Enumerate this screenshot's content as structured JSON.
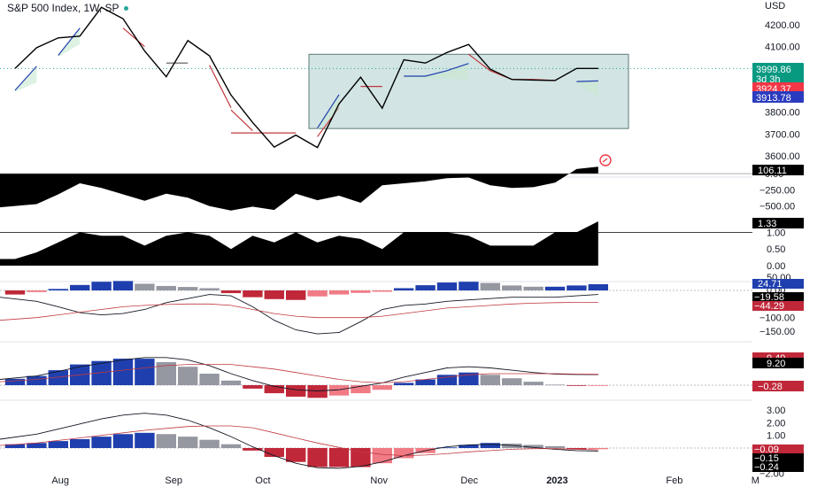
{
  "header": {
    "title": "S&P 500 Index, 1W, SP"
  },
  "chart_data": {
    "type": "line",
    "price_axis": {
      "unit": "USD",
      "ticks": [
        "4200.00",
        "4100.00",
        "3800.00",
        "3700.00",
        "3600.00"
      ],
      "tick_values": [
        4200,
        4100,
        3800,
        3700,
        3600
      ],
      "labels": [
        {
          "text": "3999.86",
          "value": 3999.86,
          "color": "#089981"
        },
        {
          "text": "3d 3h",
          "value": 3999.86,
          "color": "#089981"
        },
        {
          "text": "3924.37",
          "value": 3924.37,
          "color": "#f23645"
        },
        {
          "text": "3913.78",
          "value": 3913.78,
          "color": "#2b3bbf"
        }
      ]
    },
    "time_axis": {
      "labels": [
        "Aug",
        "Sep",
        "Oct",
        "Nov",
        "Dec",
        "2023",
        "Feb",
        "M"
      ]
    },
    "price_series": [
      4000,
      4095,
      4140,
      4148,
      4280,
      4228,
      4080,
      3962,
      4128,
      4058,
      3878,
      3753,
      3640,
      3695,
      3638,
      3838,
      3960,
      3818,
      4040,
      4025,
      4073,
      4110,
      3997,
      3950,
      3947,
      3945,
      4000,
      4000
    ],
    "signal_segments": [
      {
        "start": 0,
        "values": [
          3900,
          4010
        ],
        "color": "#1f3fae"
      },
      {
        "start": 2,
        "values": [
          4060,
          4185
        ],
        "color": "#1f3fae"
      },
      {
        "start": 5,
        "values": [
          4185,
          4100
        ],
        "color": "#c0383f"
      },
      {
        "start": 7,
        "values": [
          4025,
          4025
        ],
        "color": "#555555"
      },
      {
        "start": 9,
        "values": [
          4015,
          3820
        ],
        "color": "#c0383f"
      },
      {
        "start": 10,
        "values": [
          3810,
          3715
        ],
        "color": "#c0383f"
      },
      {
        "start": 10,
        "values": [
          3705,
          3705,
          3705,
          3705
        ],
        "color": "#c0383f"
      },
      {
        "start": 14,
        "values": [
          3688,
          3820
        ],
        "color": "#c0383f"
      },
      {
        "start": 14,
        "values": [
          3727,
          3880
        ],
        "color": "#1f3fae"
      },
      {
        "start": 16,
        "values": [
          3918,
          3918
        ],
        "color": "#c0383f"
      },
      {
        "start": 18,
        "values": [
          3965,
          3965,
          3990,
          4023
        ],
        "color": "#1f3fae"
      },
      {
        "start": 21,
        "values": [
          4065,
          3990,
          3950,
          3950,
          3945
        ],
        "color": "#c0383f"
      },
      {
        "start": 26,
        "values": [
          3940,
          3943
        ],
        "color": "#1f3fae"
      }
    ],
    "panes": [
      {
        "name": "osc1",
        "last_label": "106.11",
        "ticks": [
          "0.00",
          "−250.00",
          "−500.00"
        ],
        "values": [
          -520,
          -470,
          -320,
          -150,
          -220,
          -320,
          -420,
          -310,
          -370,
          -500,
          -570,
          -510,
          -560,
          -310,
          -410,
          -340,
          -450,
          -180,
          -150,
          -120,
          -70,
          -60,
          -180,
          -220,
          -210,
          -140,
          70,
          106
        ]
      },
      {
        "name": "osc2",
        "last_label": "1.33",
        "ticks": [
          "1.00",
          "0.50",
          "0.00"
        ],
        "values": [
          0.2,
          0.4,
          0.7,
          1.0,
          0.9,
          0.9,
          0.6,
          0.9,
          1.0,
          0.9,
          0.5,
          0.9,
          0.7,
          1.0,
          0.7,
          0.9,
          0.8,
          0.5,
          1.0,
          1.0,
          1.0,
          0.9,
          0.6,
          0.6,
          0.6,
          1.0,
          1.0,
          1.33
        ]
      },
      {
        "name": "osc3",
        "top_ticks": [
          "50.00",
          "0.00"
        ],
        "labels": [
          "24.71",
          "−19.58",
          "−44.29"
        ],
        "ticks": [
          "−100.00",
          "−150.00"
        ],
        "hist": [
          -15,
          -6,
          6,
          22,
          35,
          38,
          27,
          18,
          14,
          9,
          -10,
          -25,
          -32,
          -35,
          -22,
          -15,
          -9,
          -5,
          9,
          21,
          32,
          35,
          30,
          20,
          15,
          15,
          20,
          25
        ],
        "line1": [
          -25,
          -40,
          -60,
          -82,
          -90,
          -85,
          -70,
          -45,
          -30,
          -15,
          -20,
          -60,
          -110,
          -145,
          -160,
          -155,
          -115,
          -70,
          -55,
          -50,
          -40,
          -35,
          -30,
          -25,
          -25,
          -25,
          -20,
          -15
        ],
        "line2": [
          -110,
          -100,
          -90,
          -80,
          -70,
          -60,
          -55,
          -52,
          -50,
          -50,
          -55,
          -70,
          -85,
          -95,
          -100,
          -100,
          -100,
          -95,
          -85,
          -75,
          -65,
          -60,
          -55,
          -50,
          -47,
          -45,
          -44,
          -44
        ]
      },
      {
        "name": "osc4",
        "labels": [
          "9.49",
          "9.20",
          "−0.28"
        ],
        "hist": [
          5.5,
          8,
          13,
          18,
          21,
          23,
          23,
          20,
          16,
          10,
          4,
          -3,
          -7,
          -10,
          -11,
          -9,
          -7,
          -4,
          2,
          5,
          9,
          11,
          9,
          6,
          3,
          0.5,
          -0.6,
          -0.28
        ],
        "line1": [
          5,
          8,
          12,
          16,
          19,
          22,
          24,
          24,
          22,
          17,
          10,
          4,
          -1,
          -4,
          -5,
          -4,
          -1,
          2,
          7,
          11,
          15,
          16,
          15,
          13,
          11,
          9.5,
          9.3,
          9.2
        ],
        "line2": [
          3,
          5,
          7,
          9,
          11,
          13,
          15,
          17,
          18,
          18,
          18,
          16,
          14,
          11,
          8,
          5,
          3,
          2,
          3,
          5,
          7,
          9,
          10,
          10,
          10,
          10,
          9.6,
          9.49
        ]
      },
      {
        "name": "osc5",
        "ticks": [
          "3.00",
          "2.00",
          "1.00",
          "0.00",
          "−2.00"
        ],
        "labels": [
          "−0.09",
          "−0.15",
          "−0.24"
        ],
        "hist": [
          0.3,
          0.4,
          0.55,
          0.7,
          0.9,
          1.1,
          1.2,
          1.1,
          0.9,
          0.65,
          0.3,
          -0.2,
          -0.7,
          -1.1,
          -1.5,
          -1.5,
          -1.5,
          -1.2,
          -0.8,
          -0.4,
          0.05,
          0.25,
          0.4,
          0.35,
          0.25,
          0.15,
          -0.1,
          -0.09
        ],
        "line1": [
          0.7,
          1.1,
          1.5,
          1.9,
          2.3,
          2.6,
          2.75,
          2.6,
          2.2,
          1.6,
          0.9,
          0.1,
          -0.6,
          -1.2,
          -1.55,
          -1.6,
          -1.45,
          -1.1,
          -0.6,
          -0.2,
          0.1,
          0.25,
          0.3,
          0.2,
          0.05,
          -0.1,
          -0.2,
          -0.24
        ],
        "line2": [
          0.2,
          0.4,
          0.6,
          0.8,
          1.0,
          1.2,
          1.4,
          1.55,
          1.7,
          1.75,
          1.75,
          1.6,
          1.2,
          0.8,
          0.4,
          0.05,
          -0.3,
          -0.5,
          -0.6,
          -0.55,
          -0.45,
          -0.3,
          -0.2,
          -0.1,
          -0.05,
          -0.05,
          -0.1,
          -0.15
        ]
      }
    ],
    "colors": {
      "up": "#1f3fae",
      "down": "#c0283a",
      "up_fade": "#9598a1",
      "down_fade": "#f07b85",
      "box": "#8fbcbb"
    }
  }
}
